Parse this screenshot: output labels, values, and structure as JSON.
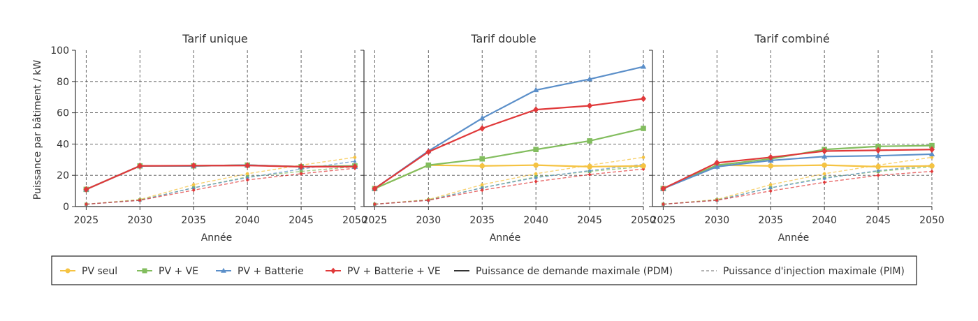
{
  "colors": {
    "pv_seul": "#f5c342",
    "pv_ve": "#82bd5e",
    "pv_batterie": "#5b8fc9",
    "pv_batterie_ve": "#e0393a"
  },
  "legend": {
    "items": [
      {
        "label": "PV seul",
        "color": "#f5c342",
        "marker": "circle",
        "style": "solid"
      },
      {
        "label": "PV + VE",
        "color": "#82bd5e",
        "marker": "square",
        "style": "solid"
      },
      {
        "label": "PV + Batterie",
        "color": "#5b8fc9",
        "marker": "triangle",
        "style": "solid"
      },
      {
        "label": "PV + Batterie + VE",
        "color": "#e0393a",
        "marker": "diamond",
        "style": "solid"
      },
      {
        "label": "Puissance de demande maximale (PDM)",
        "color": "#333333",
        "marker": "none",
        "style": "solid"
      },
      {
        "label": "Puissance d'injection maximale (PIM)",
        "color": "#888888",
        "marker": "none",
        "style": "dashed"
      }
    ]
  },
  "chart_data": [
    {
      "type": "line",
      "title": "Tarif unique",
      "xlabel": "Année",
      "ylabel": "Puissance par bâtiment / kW",
      "x": [
        2025,
        2030,
        2035,
        2040,
        2045,
        2050
      ],
      "xlim": [
        2024,
        2050
      ],
      "ylim": [
        0,
        100
      ],
      "yticks": [
        0,
        20,
        40,
        60,
        80,
        100
      ],
      "grid": true,
      "pdm": [
        {
          "name": "PV seul",
          "values": [
            11,
            26,
            26,
            26.5,
            25.5,
            26
          ]
        },
        {
          "name": "PV + VE",
          "values": [
            11,
            26,
            26,
            26.5,
            25.5,
            26
          ]
        },
        {
          "name": "PV + Batterie",
          "values": [
            11,
            26,
            26,
            26.5,
            25.5,
            25.5
          ]
        },
        {
          "name": "PV + Batterie + VE",
          "values": [
            11,
            26,
            26.2,
            26.3,
            25.5,
            25.5
          ]
        }
      ],
      "pim": [
        {
          "name": "PV seul",
          "values": [
            1.5,
            4.5,
            14,
            21,
            26.5,
            31.5
          ]
        },
        {
          "name": "PV + VE",
          "values": [
            1.5,
            4.2,
            12,
            19,
            22.5,
            25.5
          ]
        },
        {
          "name": "PV + Batterie",
          "values": [
            1.5,
            4,
            12,
            18.5,
            24,
            29
          ]
        },
        {
          "name": "PV + Batterie + VE",
          "values": [
            1.5,
            4,
            10.5,
            17,
            21,
            24.5
          ]
        }
      ]
    },
    {
      "type": "line",
      "title": "Tarif double",
      "xlabel": "Année",
      "ylabel": "",
      "x": [
        2025,
        2030,
        2035,
        2040,
        2045,
        2050
      ],
      "xlim": [
        2024,
        2050
      ],
      "ylim": [
        0,
        100
      ],
      "yticks": [
        0,
        20,
        40,
        60,
        80,
        100
      ],
      "grid": true,
      "pdm": [
        {
          "name": "PV seul",
          "values": [
            11.5,
            26.5,
            26,
            26.5,
            25.5,
            26
          ]
        },
        {
          "name": "PV + VE",
          "values": [
            11.5,
            26.5,
            30.5,
            36.5,
            42,
            50
          ]
        },
        {
          "name": "PV + Batterie",
          "values": [
            11.5,
            35.5,
            56.5,
            74.5,
            81.5,
            89.5
          ]
        },
        {
          "name": "PV + Batterie + VE",
          "values": [
            11.5,
            35,
            50,
            62,
            64.5,
            69
          ]
        }
      ],
      "pim": [
        {
          "name": "PV seul",
          "values": [
            1.5,
            4.5,
            14,
            21,
            26.5,
            31.5
          ]
        },
        {
          "name": "PV + VE",
          "values": [
            1.5,
            4.2,
            12,
            19,
            22.5,
            25.5
          ]
        },
        {
          "name": "PV + Batterie",
          "values": [
            1.5,
            4,
            12,
            18.5,
            23,
            27
          ]
        },
        {
          "name": "PV + Batterie + VE",
          "values": [
            1.5,
            4,
            10.5,
            16,
            20.5,
            24
          ]
        }
      ]
    },
    {
      "type": "line",
      "title": "Tarif combiné",
      "xlabel": "Année",
      "ylabel": "",
      "x": [
        2025,
        2030,
        2035,
        2040,
        2045,
        2050
      ],
      "xlim": [
        2024,
        2050
      ],
      "ylim": [
        0,
        100
      ],
      "yticks": [
        0,
        20,
        40,
        60,
        80,
        100
      ],
      "grid": true,
      "pdm": [
        {
          "name": "PV seul",
          "values": [
            11.5,
            26.5,
            26,
            26.5,
            25.5,
            26
          ]
        },
        {
          "name": "PV + VE",
          "values": [
            11.5,
            26.5,
            30.5,
            36.5,
            38.5,
            39
          ]
        },
        {
          "name": "PV + Batterie",
          "values": [
            11.5,
            25.5,
            29.5,
            32,
            32.5,
            33.5
          ]
        },
        {
          "name": "PV + Batterie + VE",
          "values": [
            11.5,
            28,
            31.5,
            35.5,
            36,
            36.5
          ]
        }
      ],
      "pim": [
        {
          "name": "PV seul",
          "values": [
            1.5,
            4.5,
            14,
            21,
            26.5,
            31.5
          ]
        },
        {
          "name": "PV + VE",
          "values": [
            1.5,
            4.2,
            12,
            18.5,
            22.5,
            25.5
          ]
        },
        {
          "name": "PV + Batterie",
          "values": [
            1.5,
            4,
            12,
            18,
            23,
            26.5
          ]
        },
        {
          "name": "PV + Batterie + VE",
          "values": [
            1.5,
            4,
            10,
            15.5,
            20,
            22.5
          ]
        }
      ]
    }
  ]
}
